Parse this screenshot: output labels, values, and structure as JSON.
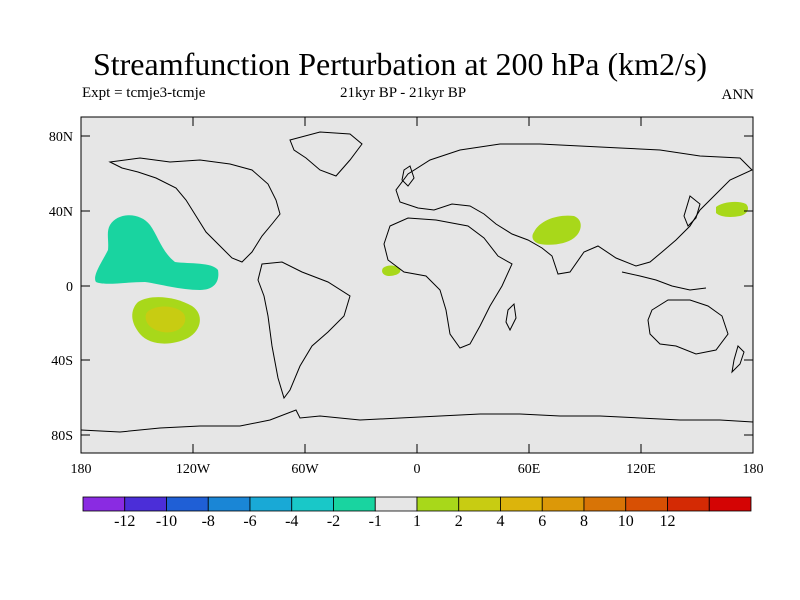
{
  "title": "Streamfunction Perturbation at 200 hPa (km2/s)",
  "expt_label": "Expt = tcmje3-tcmje",
  "period_label": "21kyr BP - 21kyr BP",
  "season_label": "ANN",
  "lat_ticks": [
    "80N",
    "40N",
    "0",
    "40S",
    "80S"
  ],
  "lon_ticks": [
    "180",
    "120W",
    "60W",
    "0",
    "60E",
    "120E",
    "180"
  ],
  "colorbar": {
    "colors": [
      "#8a2be2",
      "#4b2ed8",
      "#1f5fd6",
      "#1a86d6",
      "#19a9d6",
      "#19c8c8",
      "#19d4a0",
      "#e6e6e6",
      "#a8d81a",
      "#c8cc12",
      "#dcb40c",
      "#dc9808",
      "#d87406",
      "#d85004",
      "#d42a04",
      "#d40404"
    ],
    "labels": [
      "-12",
      "-10",
      "-8",
      "-6",
      "-4",
      "-2",
      "-1",
      "1",
      "2",
      "4",
      "6",
      "8",
      "10",
      "12"
    ]
  },
  "colors": {
    "ocean_background": "#e6e6e6",
    "contour_negative": "#19d4a0",
    "contour_positive": "#a8d81a",
    "contour_core": "#c8cc12"
  }
}
